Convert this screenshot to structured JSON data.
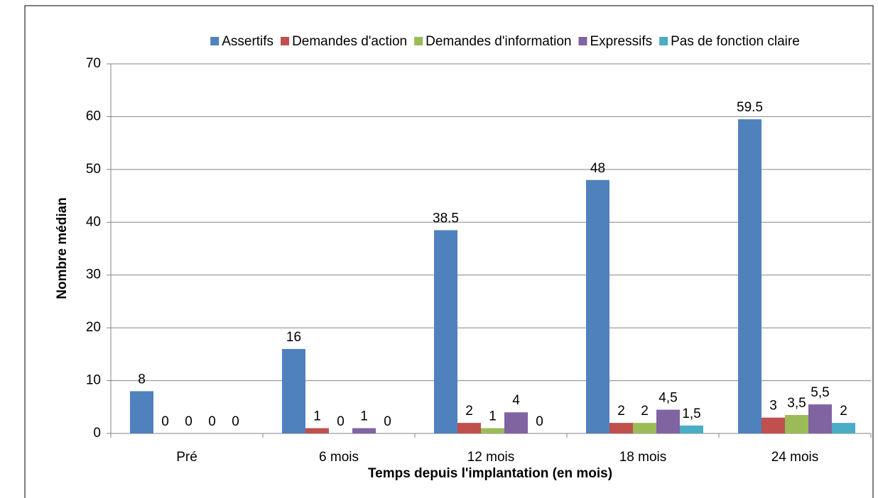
{
  "chart_data": {
    "type": "bar",
    "categories": [
      "Pré",
      "6 mois",
      "12 mois",
      "18 mois",
      "24 mois"
    ],
    "series": [
      {
        "name": "Assertifs",
        "color": "#4f81bd",
        "values": [
          8,
          16,
          38.5,
          48,
          59.5
        ],
        "value_labels": [
          "8",
          "16",
          "38.5",
          "48",
          "59.5"
        ]
      },
      {
        "name": "Demandes d'action",
        "color": "#c0504d",
        "values": [
          0,
          1,
          2,
          2,
          3
        ],
        "value_labels": [
          "0",
          "1",
          "2",
          "2",
          "3"
        ]
      },
      {
        "name": "Demandes d'information",
        "color": "#9bbb59",
        "values": [
          0,
          0,
          1,
          2,
          3.5
        ],
        "value_labels": [
          "0",
          "0",
          "1",
          "2",
          "3,5"
        ]
      },
      {
        "name": "Expressifs",
        "color": "#8064a2",
        "values": [
          0,
          1,
          4,
          4.5,
          5.5
        ],
        "value_labels": [
          "0",
          "1",
          "4",
          "4,5",
          "5,5"
        ]
      },
      {
        "name": "Pas de fonction claire",
        "color": "#4bacc6",
        "values": [
          0,
          0,
          0,
          1.5,
          2
        ],
        "value_labels": [
          "0",
          "0",
          "0",
          "1,5",
          "2"
        ]
      }
    ],
    "ylabel": "Nombre médian",
    "xlabel": "Temps depuis l'implantation (en mois)",
    "ylim": [
      0,
      70
    ],
    "yticks": [
      0,
      10,
      20,
      30,
      40,
      50,
      60,
      70
    ],
    "grid": true,
    "legend": "top"
  }
}
